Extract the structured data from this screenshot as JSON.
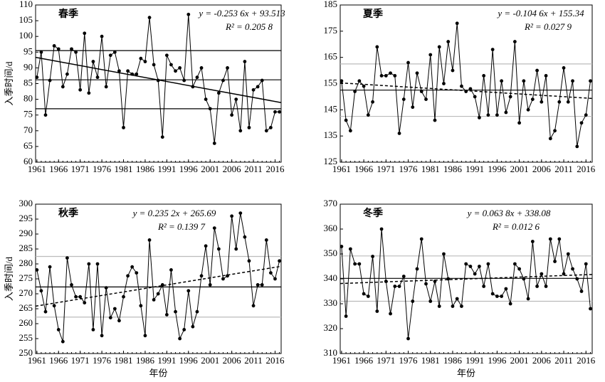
{
  "chart_data": [
    {
      "type": "line",
      "title": "春季",
      "ylabel": "入季时间/d",
      "x": [
        1961,
        1962,
        1963,
        1964,
        1965,
        1966,
        1967,
        1968,
        1969,
        1970,
        1971,
        1972,
        1973,
        1974,
        1975,
        1976,
        1977,
        1978,
        1979,
        1980,
        1981,
        1982,
        1983,
        1984,
        1985,
        1986,
        1987,
        1988,
        1989,
        1990,
        1991,
        1992,
        1993,
        1994,
        1995,
        1996,
        1997,
        1998,
        1999,
        2000,
        2001,
        2002,
        2003,
        2004,
        2005,
        2006,
        2007,
        2008,
        2009,
        2010,
        2011,
        2012,
        2013,
        2014,
        2015,
        2016,
        2017
      ],
      "series": [
        {
          "color": "#000000",
          "values": [
            87,
            95,
            75,
            86,
            97,
            96,
            84,
            88,
            96,
            95,
            83,
            101,
            82,
            92,
            87,
            100,
            84,
            94,
            95,
            89,
            71,
            89,
            88,
            88,
            93,
            92,
            106,
            91,
            86,
            68,
            94,
            91,
            89,
            90,
            86,
            107,
            84,
            87,
            90,
            80,
            77,
            66,
            82,
            86,
            90,
            75,
            80,
            70,
            92,
            71,
            83,
            84,
            86,
            70,
            71,
            76,
            76
          ]
        }
      ],
      "xlim": [
        1960.7,
        2017.4
      ],
      "xticks": [
        1961,
        1966,
        1971,
        1976,
        1981,
        1986,
        1991,
        1996,
        2001,
        2006,
        2011,
        2016
      ],
      "ylim": [
        60,
        110
      ],
      "yticks": [
        60,
        65,
        70,
        75,
        80,
        85,
        90,
        95,
        100,
        105,
        110
      ],
      "hlines": [
        {
          "value": 95.5,
          "color": "#000000"
        },
        {
          "value": 86.2,
          "color": "#000000"
        },
        {
          "value": 77,
          "color": "#000000"
        }
      ],
      "trend": {
        "slope": -0.2536,
        "intercept": 93.513,
        "dashed": false,
        "equation": "y = -0.253 6x + 93.513",
        "r2": "R² = 0.205 8"
      }
    },
    {
      "type": "line",
      "title": "夏季",
      "x": [
        1961,
        1962,
        1963,
        1964,
        1965,
        1966,
        1967,
        1968,
        1969,
        1970,
        1971,
        1972,
        1973,
        1974,
        1975,
        1976,
        1977,
        1978,
        1979,
        1980,
        1981,
        1982,
        1983,
        1984,
        1985,
        1986,
        1987,
        1988,
        1989,
        1990,
        1991,
        1992,
        1993,
        1994,
        1995,
        1996,
        1997,
        1998,
        1999,
        2000,
        2001,
        2002,
        2003,
        2004,
        2005,
        2006,
        2007,
        2008,
        2009,
        2010,
        2011,
        2012,
        2013,
        2014,
        2015,
        2016,
        2017
      ],
      "series": [
        {
          "color": "#000000",
          "values": [
            156,
            141,
            137,
            152,
            156,
            154,
            143,
            148,
            169,
            158,
            158,
            159,
            158,
            136,
            149,
            163,
            146,
            159,
            152,
            149,
            166,
            141,
            169,
            155,
            171,
            160,
            178,
            154,
            152,
            153,
            150,
            142,
            158,
            143,
            168,
            143,
            156,
            144,
            150,
            171,
            140,
            156,
            145,
            149,
            160,
            148,
            158,
            134,
            137,
            148,
            161,
            148,
            156,
            131,
            140,
            143,
            156
          ]
        }
      ],
      "xlim": [
        1960.7,
        2017.4
      ],
      "xticks": [
        1961,
        1966,
        1971,
        1976,
        1981,
        1986,
        1991,
        1996,
        2001,
        2006,
        2011,
        2016
      ],
      "ylim": [
        125,
        185
      ],
      "yticks": [
        125,
        135,
        145,
        155,
        165,
        175,
        185
      ],
      "hlines": [
        {
          "value": 162.5,
          "color": "#bbbbbb"
        },
        {
          "value": 152.5,
          "color": "#000000"
        },
        {
          "value": 142.5,
          "color": "#bbbbbb"
        }
      ],
      "trend": {
        "slope": -0.1046,
        "intercept": 155.34,
        "dashed": true,
        "equation": "y = -0.104 6x + 155.34",
        "r2": "R² = 0.027 9"
      }
    },
    {
      "type": "line",
      "title": "秋季",
      "ylabel": "入季时间/d",
      "xlabel": "年份",
      "x": [
        1961,
        1962,
        1963,
        1964,
        1965,
        1966,
        1967,
        1968,
        1969,
        1970,
        1971,
        1972,
        1973,
        1974,
        1975,
        1976,
        1977,
        1978,
        1979,
        1980,
        1981,
        1982,
        1983,
        1984,
        1985,
        1986,
        1987,
        1988,
        1989,
        1990,
        1991,
        1992,
        1993,
        1994,
        1995,
        1996,
        1997,
        1998,
        1999,
        2000,
        2001,
        2002,
        2003,
        2004,
        2005,
        2006,
        2007,
        2008,
        2009,
        2010,
        2011,
        2012,
        2013,
        2014,
        2015,
        2016,
        2017
      ],
      "series": [
        {
          "color": "#000000",
          "values": [
            278,
            271,
            264,
            279,
            266,
            258,
            254,
            282,
            273,
            269,
            269,
            267,
            280,
            258,
            280,
            256,
            272,
            262,
            265,
            261,
            269,
            276,
            279,
            277,
            266,
            256,
            288,
            268,
            270,
            273,
            263,
            278,
            264,
            255,
            258,
            271,
            259,
            264,
            276,
            286,
            273,
            292,
            285,
            275,
            276,
            296,
            285,
            297,
            289,
            281,
            266,
            273,
            273,
            288,
            277,
            275,
            281
          ]
        }
      ],
      "xlim": [
        1960.7,
        2017.4
      ],
      "xticks": [
        1961,
        1966,
        1971,
        1976,
        1981,
        1986,
        1991,
        1996,
        2001,
        2006,
        2011,
        2016
      ],
      "ylim": [
        250,
        300
      ],
      "yticks": [
        250,
        255,
        260,
        265,
        270,
        275,
        280,
        285,
        290,
        295,
        300
      ],
      "hlines": [
        {
          "value": 282.5,
          "color": "#bbbbbb"
        },
        {
          "value": 272.3,
          "color": "#000000"
        },
        {
          "value": 262.2,
          "color": "#bbbbbb"
        }
      ],
      "trend": {
        "slope": 0.2352,
        "intercept": 265.69,
        "dashed": true,
        "equation": "y = 0.235 2x + 265.69",
        "r2": "R² = 0.139 7"
      }
    },
    {
      "type": "line",
      "title": "冬季",
      "xlabel": "年份",
      "x": [
        1961,
        1962,
        1963,
        1964,
        1965,
        1966,
        1967,
        1968,
        1969,
        1970,
        1971,
        1972,
        1973,
        1974,
        1975,
        1976,
        1977,
        1978,
        1979,
        1980,
        1981,
        1982,
        1983,
        1984,
        1985,
        1986,
        1987,
        1988,
        1989,
        1990,
        1991,
        1992,
        1993,
        1994,
        1995,
        1996,
        1997,
        1998,
        1999,
        2000,
        2001,
        2002,
        2003,
        2004,
        2005,
        2006,
        2007,
        2008,
        2009,
        2010,
        2011,
        2012,
        2013,
        2014,
        2015,
        2016,
        2017
      ],
      "series": [
        {
          "color": "#000000",
          "values": [
            353,
            325,
            352,
            346,
            346,
            334,
            333,
            349,
            327,
            360,
            339,
            326,
            337,
            337,
            341,
            316,
            331,
            344,
            356,
            338,
            331,
            339,
            329,
            350,
            340,
            329,
            332,
            329,
            346,
            345,
            342,
            345,
            337,
            346,
            334,
            333,
            333,
            336,
            330,
            346,
            344,
            340,
            332,
            355,
            337,
            342,
            337,
            356,
            347,
            356,
            342,
            350,
            344,
            340,
            335,
            346,
            328
          ]
        }
      ],
      "xlim": [
        1960.7,
        2017.4
      ],
      "xticks": [
        1961,
        1966,
        1971,
        1976,
        1981,
        1986,
        1991,
        1996,
        2001,
        2006,
        2011,
        2016
      ],
      "ylim": [
        310,
        370
      ],
      "yticks": [
        310,
        320,
        330,
        340,
        350,
        360,
        370
      ],
      "hlines": [
        {
          "value": 349.2,
          "color": "#bbbbbb"
        },
        {
          "value": 340.2,
          "color": "#000000"
        },
        {
          "value": 331,
          "color": "#bbbbbb"
        }
      ],
      "trend": {
        "slope": 0.0638,
        "intercept": 338.08,
        "dashed": true,
        "equation": "y = 0.063 8x + 338.08",
        "r2": "R² = 0.012 6"
      }
    }
  ]
}
